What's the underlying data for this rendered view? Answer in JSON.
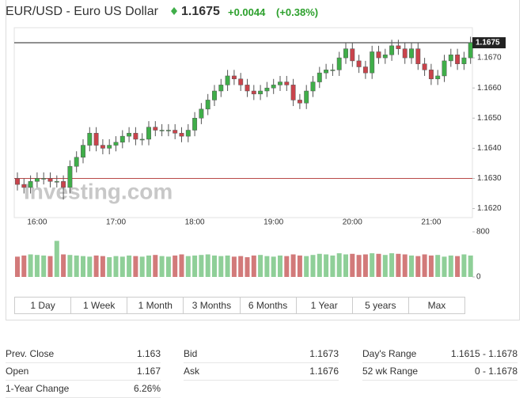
{
  "header": {
    "title": "EUR/USD - Euro US Dollar",
    "price": "1.1675",
    "change": "+0.0044",
    "change_pct": "(+0.38%)"
  },
  "chart_data": {
    "type": "candlestick",
    "watermark": "Investing.com",
    "categories": [
      null,
      null,
      null,
      "16:00",
      null,
      null,
      null,
      null,
      null,
      null,
      null,
      null,
      null,
      null,
      null,
      "17:00",
      null,
      null,
      null,
      null,
      null,
      null,
      null,
      null,
      null,
      null,
      null,
      "18:00",
      null,
      null,
      null,
      null,
      null,
      null,
      null,
      null,
      null,
      null,
      null,
      "19:00",
      null,
      null,
      null,
      null,
      null,
      null,
      null,
      null,
      null,
      null,
      null,
      "20:00",
      null,
      null,
      null,
      null,
      null,
      null,
      null,
      null,
      null,
      null,
      null,
      "21:00",
      null,
      null,
      null,
      null,
      null,
      null
    ],
    "open": [
      1.163,
      1.1628,
      1.1627,
      1.1629,
      1.163,
      1.163,
      1.1629,
      1.1629,
      1.1627,
      1.1634,
      1.1637,
      1.1641,
      1.1645,
      1.1641,
      1.164,
      1.1641,
      1.1642,
      1.1644,
      1.1645,
      1.1643,
      1.1643,
      1.1647,
      1.1646,
      1.1646,
      1.1646,
      1.1645,
      1.1644,
      1.1646,
      1.165,
      1.1653,
      1.1656,
      1.1659,
      1.1661,
      1.1664,
      1.1663,
      1.1661,
      1.1659,
      1.1658,
      1.1659,
      1.166,
      1.1661,
      1.1662,
      1.1661,
      1.1656,
      1.1655,
      1.1659,
      1.1662,
      1.1665,
      1.1666,
      1.1666,
      1.167,
      1.1673,
      1.1669,
      1.1667,
      1.1665,
      1.1672,
      1.167,
      1.1671,
      1.1674,
      1.1673,
      1.167,
      1.1673,
      1.1668,
      1.1666,
      1.1663,
      1.1664,
      1.1669,
      1.1671,
      1.1668,
      1.167
    ],
    "high": [
      1.1632,
      1.163,
      1.1631,
      1.1632,
      1.1632,
      1.1632,
      1.1631,
      1.1631,
      1.1636,
      1.1639,
      1.1643,
      1.1647,
      1.1647,
      1.1643,
      1.1643,
      1.1644,
      1.1646,
      1.1647,
      1.1647,
      1.1645,
      1.1649,
      1.1649,
      1.1648,
      1.1648,
      1.1648,
      1.1647,
      1.1648,
      1.1652,
      1.1655,
      1.1658,
      1.1661,
      1.1663,
      1.1666,
      1.1666,
      1.1665,
      1.1663,
      1.1661,
      1.1661,
      1.1662,
      1.1663,
      1.1664,
      1.1664,
      1.1663,
      1.1658,
      1.1661,
      1.1664,
      1.1667,
      1.1668,
      1.1668,
      1.1672,
      1.1675,
      1.1675,
      1.1671,
      1.1669,
      1.1674,
      1.1674,
      1.1673,
      1.1676,
      1.1676,
      1.1675,
      1.1675,
      1.1675,
      1.167,
      1.1668,
      1.1666,
      1.1671,
      1.1673,
      1.1673,
      1.1672,
      1.1677
    ],
    "low": [
      1.1626,
      1.1625,
      1.1625,
      1.1627,
      1.1628,
      1.1627,
      1.1627,
      1.1623,
      1.1625,
      1.1632,
      1.1635,
      1.1639,
      1.1639,
      1.1638,
      1.1638,
      1.1639,
      1.164,
      1.1642,
      1.1641,
      1.1641,
      1.1641,
      1.1644,
      1.1644,
      1.1644,
      1.1643,
      1.1642,
      1.1642,
      1.1644,
      1.1648,
      1.1651,
      1.1654,
      1.1657,
      1.1659,
      1.1661,
      1.1659,
      1.1657,
      1.1656,
      1.1656,
      1.1657,
      1.1658,
      1.1659,
      1.1659,
      1.1654,
      1.1653,
      1.1653,
      1.1657,
      1.166,
      1.1663,
      1.1664,
      1.1664,
      1.1668,
      1.1667,
      1.1665,
      1.1663,
      1.1663,
      1.1668,
      1.1668,
      1.1669,
      1.1671,
      1.1668,
      1.1668,
      1.1666,
      1.1664,
      1.1661,
      1.1661,
      1.1662,
      1.1667,
      1.1666,
      1.1666,
      1.1668
    ],
    "close": [
      1.1628,
      1.1627,
      1.1629,
      1.163,
      1.163,
      1.1629,
      1.1629,
      1.1627,
      1.1634,
      1.1637,
      1.1641,
      1.1645,
      1.1641,
      1.164,
      1.1641,
      1.1642,
      1.1644,
      1.1645,
      1.1643,
      1.1643,
      1.1647,
      1.1646,
      1.1646,
      1.1646,
      1.1645,
      1.1644,
      1.1646,
      1.165,
      1.1653,
      1.1656,
      1.1659,
      1.1661,
      1.1664,
      1.1663,
      1.1661,
      1.1659,
      1.1658,
      1.1659,
      1.166,
      1.1661,
      1.1662,
      1.1661,
      1.1656,
      1.1655,
      1.1659,
      1.1662,
      1.1665,
      1.1666,
      1.1666,
      1.167,
      1.1673,
      1.1669,
      1.1667,
      1.1665,
      1.1672,
      1.167,
      1.1671,
      1.1674,
      1.1673,
      1.167,
      1.1673,
      1.1668,
      1.1666,
      1.1663,
      1.1664,
      1.1669,
      1.1671,
      1.1668,
      1.167,
      1.1675
    ],
    "color_up": "#3fae49",
    "color_down": "#c9434b",
    "ylim": [
      1.1617,
      1.168
    ],
    "yticks": [
      {
        "value": 1.162,
        "label": "1.1620"
      },
      {
        "value": 1.163,
        "label": "1.1630"
      },
      {
        "value": 1.164,
        "label": "1.1640"
      },
      {
        "value": 1.165,
        "label": "1.1650"
      },
      {
        "value": 1.166,
        "label": "1.1660"
      },
      {
        "value": 1.167,
        "label": "1.1670"
      }
    ],
    "grid": false,
    "last_price": 1.1675,
    "last_price_color": "#222",
    "reference_price": 1.163,
    "reference_color": "#b94a48",
    "volume": {
      "values": [
        360,
        380,
        400,
        390,
        380,
        370,
        640,
        400,
        390,
        380,
        370,
        360,
        380,
        370,
        350,
        370,
        360,
        380,
        370,
        360,
        380,
        390,
        370,
        360,
        380,
        400,
        370,
        380,
        390,
        400,
        380,
        370,
        380,
        360,
        370,
        350,
        380,
        390,
        370,
        360,
        380,
        370,
        400,
        380,
        370,
        390,
        410,
        400,
        380,
        420,
        400,
        410,
        390,
        400,
        420,
        410,
        390,
        420,
        410,
        400,
        380,
        370,
        400,
        380,
        390,
        360,
        380,
        370,
        400,
        380
      ],
      "color_up": "#8fcf98",
      "color_down": "#d27a7a",
      "ylim": [
        0,
        800
      ],
      "yticks": [
        0,
        800
      ]
    }
  },
  "ranges": [
    "1 Day",
    "1 Week",
    "1 Month",
    "3 Months",
    "6 Months",
    "1 Year",
    "5 years",
    "Max"
  ],
  "stats": {
    "columns": [
      [
        [
          "Prev. Close",
          "1.163"
        ],
        [
          "Open",
          "1.167"
        ],
        [
          "1-Year Change",
          "6.26%"
        ]
      ],
      [
        [
          "Bid",
          "1.1673"
        ],
        [
          "Ask",
          "1.1676"
        ]
      ],
      [
        [
          "Day's Range",
          "1.1615 - 1.1678"
        ],
        [
          "52 wk Range",
          "0 - 1.1678"
        ]
      ]
    ]
  }
}
